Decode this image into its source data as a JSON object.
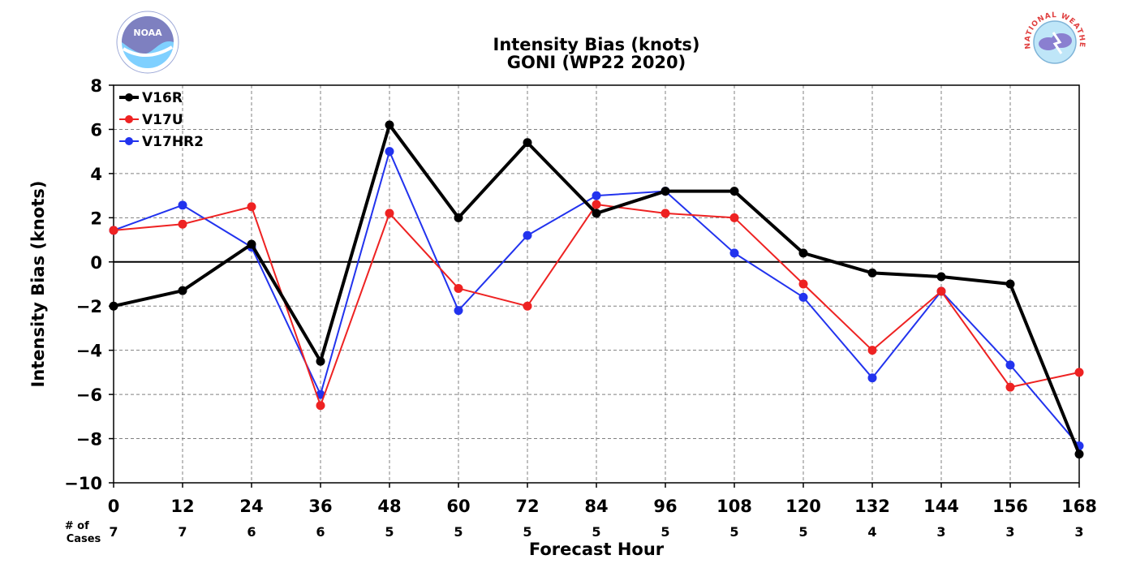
{
  "chart_data": {
    "type": "line",
    "title": "Intensity Bias (knots)",
    "subtitle": "GONI (WP22 2020)",
    "xlabel": "Forecast Hour",
    "ylabel": "Intensity Bias (knots)",
    "x": [
      0,
      12,
      24,
      36,
      48,
      60,
      72,
      84,
      96,
      108,
      120,
      132,
      144,
      156,
      168
    ],
    "xlim": [
      0,
      168
    ],
    "ylim": [
      -10,
      8
    ],
    "yticks": [
      -10,
      -8,
      -6,
      -4,
      -2,
      0,
      2,
      4,
      6,
      8
    ],
    "grid": true,
    "legend_position": "top-left",
    "cases_label": "# of\nCases",
    "cases": [
      7,
      7,
      6,
      6,
      5,
      5,
      5,
      5,
      5,
      5,
      5,
      4,
      3,
      3,
      3
    ],
    "series": [
      {
        "name": "V16R",
        "color": "#000000",
        "values": [
          -2.0,
          -1.3,
          0.8,
          -4.5,
          6.2,
          2.0,
          5.4,
          2.2,
          3.2,
          3.2,
          0.4,
          -0.5,
          -0.67,
          -1.0,
          -8.7
        ]
      },
      {
        "name": "V17U",
        "color": "#ee2222",
        "values": [
          1.43,
          1.71,
          2.5,
          -6.5,
          2.2,
          -1.2,
          -2.0,
          2.6,
          2.2,
          2.0,
          -1.0,
          -4.0,
          -1.33,
          -5.67,
          -5.0
        ]
      },
      {
        "name": "V17HR2",
        "color": "#2233ee",
        "values": [
          1.43,
          2.57,
          0.67,
          -6.0,
          5.0,
          -2.2,
          1.2,
          3.0,
          3.2,
          0.4,
          -1.6,
          -5.25,
          -1.33,
          -4.67,
          -8.33
        ]
      }
    ]
  },
  "logos": {
    "left": {
      "icon": "noaa-logo-icon",
      "text": "NOAA"
    },
    "right": {
      "icon": "nws-logo-icon",
      "text": "NATIONAL WEATHER SERVICE"
    }
  }
}
